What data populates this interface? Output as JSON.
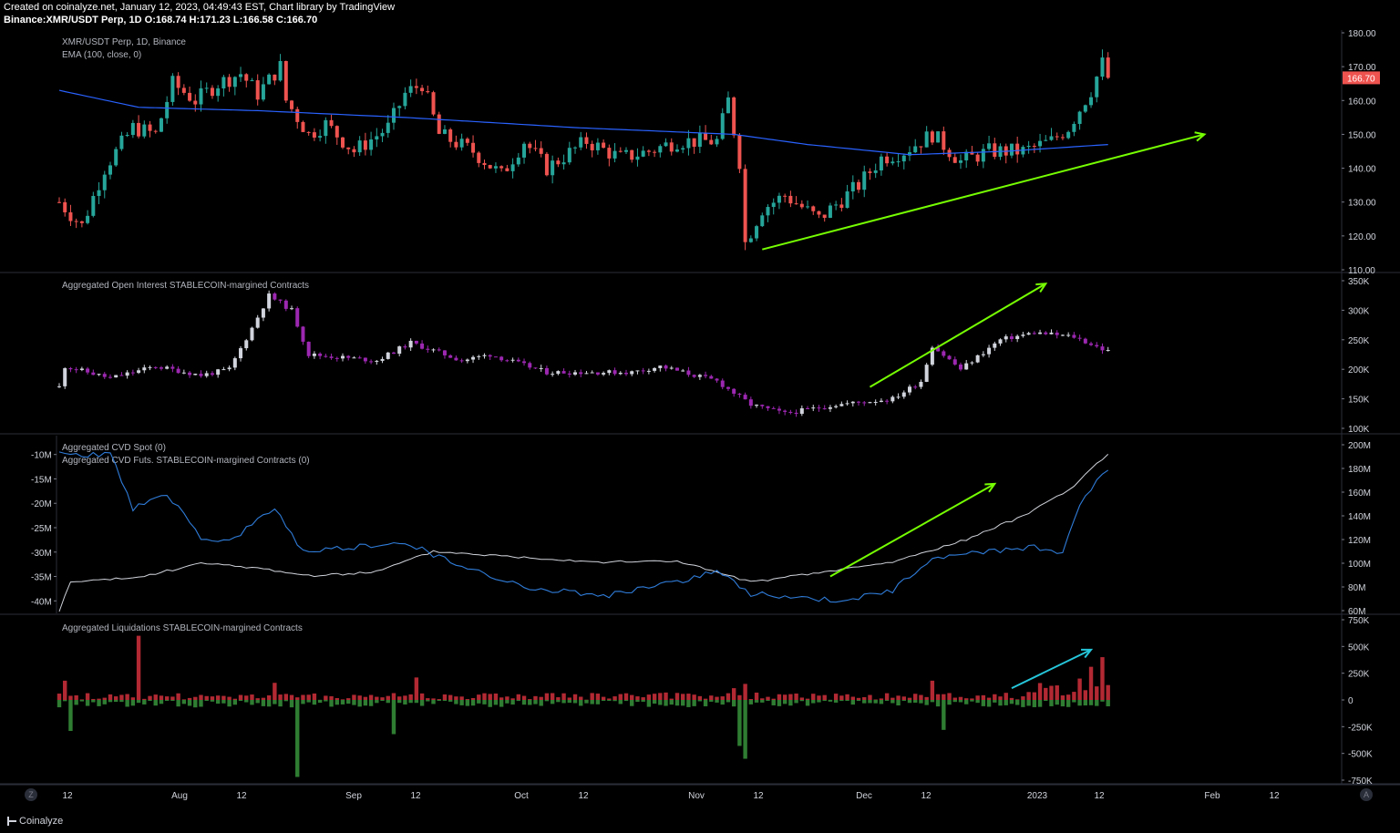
{
  "header": {
    "created": "Created on coinalyze.net, January 12, 2023, 04:49:43 EST, Chart library by TradingView",
    "symbol_line": "Binance:XMR/USDT Perp, 1D O:168.74 H:171.23 L:166.58 C:166.70"
  },
  "footer": {
    "brand": "Coinalyze",
    "left_button": "Z",
    "right_button": "A"
  },
  "colors": {
    "up": "#26a69a",
    "down": "#ef5350",
    "ema": "#2962ff",
    "oi_up": "#d1d4dc",
    "oi_down": "#9c27b0",
    "cvd_spot": "#d1d4dc",
    "cvd_futs": "#2f7cd9",
    "liq_long": "#b22833",
    "liq_short": "#2e7d32",
    "trend_green": "#76ff03",
    "trend_cyan": "#26c6da",
    "price_tag": "#ef5350"
  },
  "x_axis": {
    "labels": [
      "12",
      "Aug",
      "12",
      "Sep",
      "12",
      "Oct",
      "12",
      "Nov",
      "12",
      "Dec",
      "12",
      "2023",
      "12",
      "Feb",
      "12"
    ]
  },
  "chart_data": [
    {
      "type": "candlestick",
      "title": "XMR/USDT Perp, 1D, Binance",
      "indicator": "EMA (100, close, 0)",
      "ylim": [
        110,
        180
      ],
      "y_ticks": [
        "180.00",
        "170.00",
        "160.00",
        "150.00",
        "140.00",
        "130.00",
        "120.00",
        "110.00"
      ],
      "last_price": "166.70",
      "x_start": "2022-07-11",
      "x_end": "2023-01-12",
      "close_keypoints": [
        [
          "2022-07-11",
          130
        ],
        [
          "2022-07-15",
          123
        ],
        [
          "2022-07-19",
          140
        ],
        [
          "2022-07-24",
          152
        ],
        [
          "2022-07-28",
          150
        ],
        [
          "2022-07-31",
          165
        ],
        [
          "2022-08-04",
          160
        ],
        [
          "2022-08-08",
          165
        ],
        [
          "2022-08-12",
          168
        ],
        [
          "2022-08-15",
          162
        ],
        [
          "2022-08-19",
          170
        ],
        [
          "2022-08-20",
          160
        ],
        [
          "2022-08-24",
          150
        ],
        [
          "2022-08-27",
          153
        ],
        [
          "2022-09-01",
          145
        ],
        [
          "2022-09-07",
          152
        ],
        [
          "2022-09-10",
          162
        ],
        [
          "2022-09-13",
          165
        ],
        [
          "2022-09-16",
          150
        ],
        [
          "2022-09-22",
          145
        ],
        [
          "2022-09-27",
          138
        ],
        [
          "2022-10-01",
          148
        ],
        [
          "2022-10-05",
          140
        ],
        [
          "2022-10-12",
          148
        ],
        [
          "2022-10-18",
          143
        ],
        [
          "2022-10-23",
          145
        ],
        [
          "2022-10-28",
          148
        ],
        [
          "2022-11-04",
          148
        ],
        [
          "2022-11-06",
          160
        ],
        [
          "2022-11-08",
          142
        ],
        [
          "2022-11-09",
          118
        ],
        [
          "2022-11-12",
          128
        ],
        [
          "2022-11-16",
          132
        ],
        [
          "2022-11-22",
          125
        ],
        [
          "2022-11-29",
          135
        ],
        [
          "2022-12-03",
          143
        ],
        [
          "2022-12-07",
          145
        ],
        [
          "2022-12-12",
          150
        ],
        [
          "2022-12-17",
          142
        ],
        [
          "2022-12-22",
          145
        ],
        [
          "2022-12-28",
          145
        ],
        [
          "2023-01-02",
          148
        ],
        [
          "2023-01-05",
          152
        ],
        [
          "2023-01-09",
          163
        ],
        [
          "2023-01-11",
          171
        ],
        [
          "2023-01-12",
          166.7
        ]
      ],
      "ema_keypoints": [
        [
          "2022-07-11",
          163
        ],
        [
          "2022-07-25",
          158
        ],
        [
          "2022-08-15",
          157
        ],
        [
          "2022-09-10",
          155
        ],
        [
          "2022-10-10",
          152
        ],
        [
          "2022-11-07",
          150
        ],
        [
          "2022-11-20",
          147
        ],
        [
          "2022-12-08",
          144
        ],
        [
          "2022-12-25",
          145
        ],
        [
          "2023-01-12",
          147
        ]
      ],
      "annotations": [
        {
          "type": "trend-arrow",
          "from": [
            "2022-11-12",
            116
          ],
          "to": [
            "2023-01-29",
            150
          ]
        }
      ]
    },
    {
      "type": "candlestick",
      "title": "Aggregated Open Interest STABLECOIN-margined Contracts",
      "ylim": [
        100,
        350
      ],
      "y_unit": "K",
      "y_ticks": [
        "350K",
        "300K",
        "250K",
        "200K",
        "150K",
        "100K"
      ],
      "keypoints": [
        [
          "2022-07-11",
          170
        ],
        [
          "2022-07-12",
          205
        ],
        [
          "2022-07-20",
          185
        ],
        [
          "2022-07-28",
          205
        ],
        [
          "2022-08-05",
          190
        ],
        [
          "2022-08-10",
          200
        ],
        [
          "2022-08-14",
          270
        ],
        [
          "2022-08-17",
          325
        ],
        [
          "2022-08-21",
          300
        ],
        [
          "2022-08-24",
          225
        ],
        [
          "2022-09-05",
          215
        ],
        [
          "2022-09-11",
          245
        ],
        [
          "2022-09-20",
          215
        ],
        [
          "2022-09-25",
          225
        ],
        [
          "2022-10-05",
          195
        ],
        [
          "2022-10-20",
          195
        ],
        [
          "2022-10-25",
          205
        ],
        [
          "2022-11-04",
          180
        ],
        [
          "2022-11-10",
          140
        ],
        [
          "2022-11-16",
          125
        ],
        [
          "2022-11-25",
          140
        ],
        [
          "2022-12-05",
          150
        ],
        [
          "2022-12-10",
          180
        ],
        [
          "2022-12-12",
          240
        ],
        [
          "2022-12-17",
          200
        ],
        [
          "2022-12-24",
          250
        ],
        [
          "2022-12-30",
          262
        ],
        [
          "2023-01-06",
          255
        ],
        [
          "2023-01-12",
          230
        ]
      ],
      "annotations": [
        {
          "type": "trend-arrow",
          "from": [
            "2022-12-01",
            170
          ],
          "to": [
            "2023-01-01",
            345
          ]
        }
      ]
    },
    {
      "type": "line",
      "title_lines": [
        "Aggregated CVD Spot (0)",
        "Aggregated CVD Futs. STABLECOIN-margined Contracts (0)"
      ],
      "left_axis": {
        "ylim": [
          -42,
          -8
        ],
        "ticks": [
          "-10M",
          "-15M",
          "-20M",
          "-25M",
          "-30M",
          "-35M",
          "-40M"
        ]
      },
      "right_axis": {
        "ylim": [
          60,
          200
        ],
        "ticks": [
          "200M",
          "180M",
          "160M",
          "140M",
          "120M",
          "100M",
          "80M",
          "60M"
        ]
      },
      "series": [
        {
          "axis": "right",
          "values_keypoints": [
            [
              "2022-07-11",
              60
            ],
            [
              "2022-07-13",
              84
            ],
            [
              "2022-07-25",
              88
            ],
            [
              "2022-08-05",
              100
            ],
            [
              "2022-08-15",
              96
            ],
            [
              "2022-08-25",
              89
            ],
            [
              "2022-09-05",
              93
            ],
            [
              "2022-09-15",
              110
            ],
            [
              "2022-10-01",
              105
            ],
            [
              "2022-10-15",
              101
            ],
            [
              "2022-10-28",
              102
            ],
            [
              "2022-11-10",
              84
            ],
            [
              "2022-11-22",
              92
            ],
            [
              "2022-12-05",
              101
            ],
            [
              "2022-12-18",
              120
            ],
            [
              "2022-12-28",
              140
            ],
            [
              "2023-01-06",
              165
            ],
            [
              "2023-01-12",
              193
            ]
          ]
        },
        {
          "axis": "left",
          "values_keypoints": [
            [
              "2022-07-11",
              -10
            ],
            [
              "2022-07-20",
              -10
            ],
            [
              "2022-07-24",
              -21
            ],
            [
              "2022-07-30",
              -18
            ],
            [
              "2022-08-05",
              -27
            ],
            [
              "2022-08-10",
              -28
            ],
            [
              "2022-08-18",
              -21
            ],
            [
              "2022-08-23",
              -30
            ],
            [
              "2022-09-10",
              -28
            ],
            [
              "2022-09-20",
              -33
            ],
            [
              "2022-10-01",
              -37
            ],
            [
              "2022-10-15",
              -39
            ],
            [
              "2022-10-28",
              -36
            ],
            [
              "2022-11-04",
              -34
            ],
            [
              "2022-11-10",
              -38.5
            ],
            [
              "2022-11-25",
              -40
            ],
            [
              "2022-12-05",
              -38
            ],
            [
              "2022-12-12",
              -31
            ],
            [
              "2022-12-20",
              -30
            ],
            [
              "2022-12-30",
              -29
            ],
            [
              "2023-01-04",
              -30
            ],
            [
              "2023-01-07",
              -20
            ],
            [
              "2023-01-12",
              -13
            ]
          ]
        }
      ],
      "annotations": [
        {
          "type": "trend-arrow",
          "from": [
            "2022-11-24",
            -35
          ],
          "to": [
            "2022-12-23",
            -16
          ]
        }
      ]
    },
    {
      "type": "bar",
      "title": "Aggregated Liquidations STABLECOIN-margined Contracts",
      "ylim": [
        -750,
        750
      ],
      "y_unit": "K",
      "y_ticks": [
        "750K",
        "500K",
        "250K",
        "0",
        "-250K",
        "-500K",
        "-750K"
      ],
      "long_spikes": [
        [
          "2022-07-25",
          600
        ],
        [
          "2022-07-12",
          180
        ],
        [
          "2022-08-18",
          160
        ],
        [
          "2022-09-12",
          210
        ],
        [
          "2022-11-07",
          110
        ],
        [
          "2022-11-09",
          150
        ],
        [
          "2022-12-12",
          180
        ],
        [
          "2023-01-09",
          310
        ],
        [
          "2023-01-11",
          400
        ],
        [
          "2023-01-07",
          200
        ]
      ],
      "short_spikes": [
        [
          "2022-08-22",
          -720
        ],
        [
          "2022-09-08",
          -320
        ],
        [
          "2022-11-09",
          -550
        ],
        [
          "2022-11-08",
          -430
        ],
        [
          "2022-12-14",
          -280
        ],
        [
          "2022-07-13",
          -290
        ]
      ],
      "annotations": [
        {
          "type": "trend-arrow",
          "from": [
            "2022-12-26",
            110
          ],
          "to": [
            "2023-01-09",
            470
          ]
        }
      ]
    }
  ]
}
